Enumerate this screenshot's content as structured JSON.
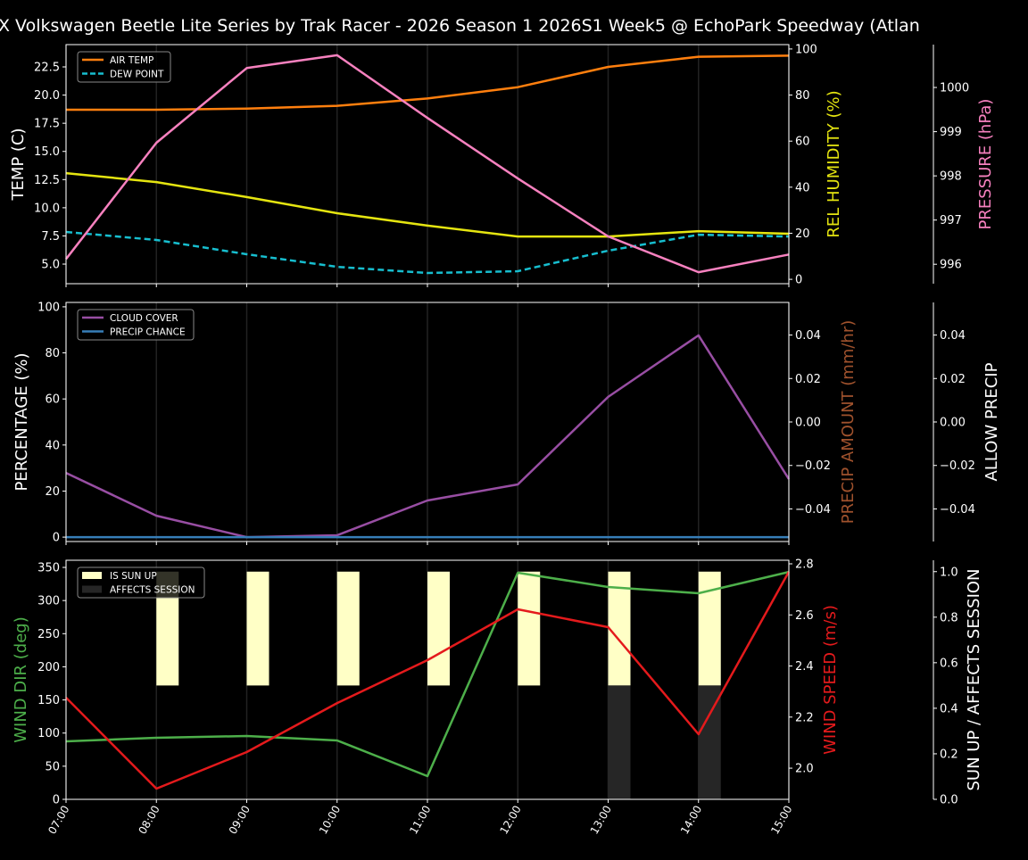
{
  "title": "X Volkswagen Beetle Lite Series by Trak Racer - 2026 Season 1 2026S1 Week5 @ EchoPark Speedway (Atlan",
  "chart_data": [
    {
      "type": "line",
      "x": [
        "07:00",
        "08:00",
        "09:00",
        "10:00",
        "11:00",
        "12:00",
        "13:00",
        "14:00",
        "15:00"
      ],
      "axes": {
        "left": {
          "label": "TEMP (C)",
          "color": "#ffffff",
          "ylim": [
            3.26,
            24.48
          ],
          "ticks": [
            5.0,
            7.5,
            10.0,
            12.5,
            15.0,
            17.5,
            20.0,
            22.5
          ],
          "tick_labels": [
            "5.0",
            "7.5",
            "10.0",
            "12.5",
            "15.0",
            "17.5",
            "20.0",
            "22.5"
          ]
        },
        "right1": {
          "label": "REL HUMIDITY (%)",
          "color": "#e5e510",
          "ylim": [
            -1.9,
            101.9
          ],
          "ticks": [
            0,
            20,
            40,
            60,
            80,
            100
          ],
          "tick_labels": [
            "0",
            "20",
            "40",
            "60",
            "80",
            "100"
          ]
        },
        "right2": {
          "label": "PRESSURE (hPa)",
          "color": "#f781bf",
          "ylim": [
            995.56,
            1000.97
          ],
          "ticks": [
            996,
            997,
            998,
            999,
            1000
          ],
          "tick_labels": [
            "996",
            "997",
            "998",
            "999",
            "1000"
          ]
        }
      },
      "series": [
        {
          "name": "AIR TEMP",
          "axis": "left",
          "color": "#ff7f0e",
          "dashed": false,
          "legend": true,
          "values": [
            18.7,
            18.7,
            18.8,
            19.05,
            19.7,
            20.7,
            22.5,
            23.4,
            23.5
          ]
        },
        {
          "name": "DEW POINT",
          "axis": "left",
          "color": "#17becf",
          "dashed": true,
          "legend": true,
          "values": [
            7.85,
            7.14,
            5.87,
            4.76,
            4.21,
            4.37,
            6.19,
            7.61,
            7.45
          ]
        },
        {
          "axis": "right1",
          "color": "#e5e510",
          "dashed": false,
          "legend": false,
          "values": [
            46.1,
            42.2,
            35.7,
            28.7,
            23.3,
            18.6,
            18.6,
            20.9,
            19.8
          ]
        },
        {
          "axis": "right2",
          "color": "#f781bf",
          "dashed": false,
          "legend": false,
          "values": [
            996.12,
            998.75,
            1000.44,
            1000.73,
            999.31,
            997.94,
            996.63,
            995.82,
            996.22
          ]
        }
      ],
      "grid": "vertical",
      "legend_position": "top-left"
    },
    {
      "type": "line",
      "x": [
        "07:00",
        "08:00",
        "09:00",
        "10:00",
        "11:00",
        "12:00",
        "13:00",
        "14:00",
        "15:00"
      ],
      "axes": {
        "left": {
          "label": "PERCENTAGE (%)",
          "color": "#ffffff",
          "ylim": [
            -1.9,
            101.9
          ],
          "ticks": [
            0,
            20,
            40,
            60,
            80,
            100
          ],
          "tick_labels": [
            "0",
            "20",
            "40",
            "60",
            "80",
            "100"
          ]
        },
        "right1": {
          "label": "PRECIP AMOUNT (mm/hr)",
          "color": "#a0522d",
          "ylim": [
            -0.055,
            0.055
          ],
          "ticks": [
            -0.04,
            -0.02,
            0,
            0.02,
            0.04
          ],
          "tick_labels": [
            "−0.04",
            "−0.02",
            "0.00",
            "0.02",
            "0.04"
          ]
        },
        "right2": {
          "label": "ALLOW PRECIP",
          "color": "#ffffff",
          "ylim": [
            -0.055,
            0.055
          ],
          "ticks": [
            -0.04,
            -0.02,
            0,
            0.02,
            0.04
          ],
          "tick_labels": [
            "−0.04",
            "−0.02",
            "0.00",
            "0.02",
            "0.04"
          ]
        }
      },
      "series": [
        {
          "name": "CLOUD COVER",
          "axis": "left",
          "color": "#984ea3",
          "dashed": false,
          "legend": true,
          "values": [
            27.9,
            9.3,
            0,
            0.8,
            15.9,
            22.9,
            60.9,
            87.6,
            25.2
          ]
        },
        {
          "name": "PRECIP CHANCE",
          "axis": "left",
          "color": "#377eb8",
          "dashed": false,
          "legend": true,
          "values": [
            0,
            0,
            0,
            0,
            0,
            0,
            0,
            0,
            0
          ]
        }
      ],
      "grid": "vertical",
      "legend_position": "top-left"
    },
    {
      "type": "line",
      "x": [
        "07:00",
        "08:00",
        "09:00",
        "10:00",
        "11:00",
        "12:00",
        "13:00",
        "14:00",
        "15:00"
      ],
      "axes": {
        "left": {
          "label": "WIND DIR (deg)",
          "color": "#4daf4a",
          "ylim": [
            0,
            360.8
          ],
          "ticks": [
            0,
            50,
            100,
            150,
            200,
            250,
            300,
            350
          ],
          "tick_labels": [
            "0",
            "50",
            "100",
            "150",
            "200",
            "250",
            "300",
            "350"
          ]
        },
        "right1": {
          "label": "WIND SPEED (m/s)",
          "color": "#e41a1c",
          "ylim": [
            1.878,
            2.814
          ],
          "ticks": [
            2.0,
            2.2,
            2.4,
            2.6,
            2.8
          ],
          "tick_labels": [
            "2.0",
            "2.2",
            "2.4",
            "2.6",
            "2.8"
          ]
        },
        "right2": {
          "label": "SUN UP / AFFECTS SESSION",
          "color": "#ffffff",
          "ylim": [
            0,
            1.05
          ],
          "ticks": [
            0,
            0.2,
            0.4,
            0.6,
            0.8,
            1.0
          ],
          "tick_labels": [
            "0.0",
            "0.2",
            "0.4",
            "0.6",
            "0.8",
            "1.0"
          ]
        }
      },
      "bars": [
        {
          "name": "IS SUN UP",
          "axis": "right2",
          "color": "#ffffc6",
          "range": [
            0.5,
            1.0
          ],
          "values": [
            0,
            1,
            1,
            1,
            1,
            1,
            1,
            1,
            0
          ]
        },
        {
          "name": "AFFECTS SESSION",
          "axis": "right2",
          "color": "#262626",
          "range": [
            0,
            0.5
          ],
          "values": [
            0,
            0,
            0,
            0,
            0,
            0,
            1,
            1,
            0
          ]
        }
      ],
      "series": [
        {
          "axis": "left",
          "color": "#4daf4a",
          "dashed": false,
          "legend": false,
          "values": [
            87.5,
            92.9,
            95.6,
            88.8,
            35,
            341.9,
            320.4,
            311,
            343.2
          ]
        },
        {
          "axis": "right1",
          "color": "#e41a1c",
          "dashed": false,
          "legend": false,
          "values": [
            2.276,
            1.92,
            2.063,
            2.255,
            2.423,
            2.622,
            2.552,
            2.133,
            2.769
          ]
        }
      ],
      "grid": "vertical",
      "legend_position": "top-left"
    }
  ]
}
